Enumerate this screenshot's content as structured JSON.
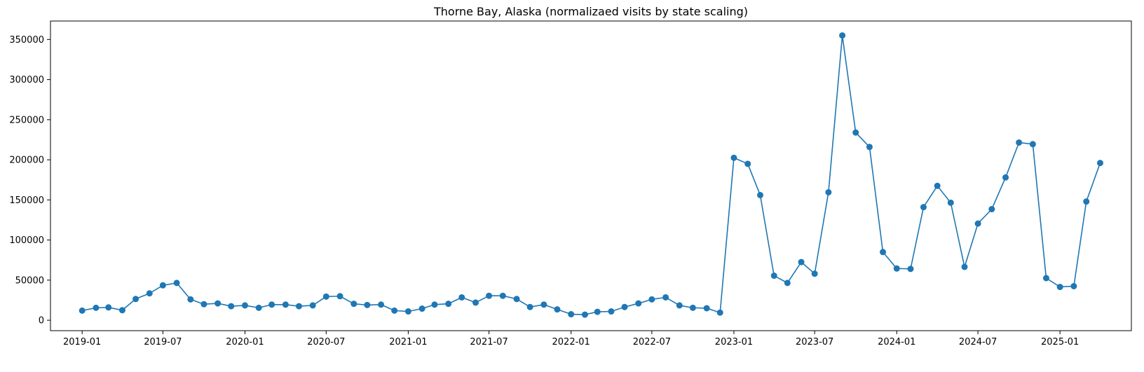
{
  "chart_data": {
    "type": "line",
    "title": "Thorne Bay, Alaska (normalizaed visits by state scaling)",
    "xlabel": "",
    "ylabel": "",
    "x_tick_labels": [
      "2019-01",
      "2019-07",
      "2020-01",
      "2020-07",
      "2021-01",
      "2021-07",
      "2022-01",
      "2022-07",
      "2023-01",
      "2023-07",
      "2024-01",
      "2024-07",
      "2025-01"
    ],
    "y_tick_labels": [
      "0",
      "50000",
      "100000",
      "150000",
      "200000",
      "250000",
      "300000",
      "350000"
    ],
    "y_ticks": [
      0,
      50000,
      100000,
      150000,
      200000,
      250000,
      300000,
      350000
    ],
    "ylim": [
      -13000,
      373000
    ],
    "xlim": [
      "2018-10-22",
      "2025-06-10"
    ],
    "grid": false,
    "marker": "circle",
    "color": "#1f77b4",
    "series": [
      {
        "x": [
          "2019-01",
          "2019-02",
          "2019-03",
          "2019-04",
          "2019-05",
          "2019-06",
          "2019-07",
          "2019-08",
          "2019-09",
          "2019-10",
          "2019-11",
          "2019-12",
          "2020-01",
          "2020-02",
          "2020-03",
          "2020-04",
          "2020-05",
          "2020-06",
          "2020-07",
          "2020-08",
          "2020-09",
          "2020-10",
          "2020-11",
          "2020-12",
          "2021-01",
          "2021-02",
          "2021-03",
          "2021-04",
          "2021-05",
          "2021-06",
          "2021-07",
          "2021-08",
          "2021-09",
          "2021-10",
          "2021-11",
          "2021-12",
          "2022-01",
          "2022-02",
          "2022-03",
          "2022-04",
          "2022-05",
          "2022-06",
          "2022-07",
          "2022-08",
          "2022-09",
          "2022-10",
          "2022-11",
          "2022-12",
          "2023-01",
          "2023-02",
          "2023-03",
          "2023-04",
          "2023-05",
          "2023-06",
          "2023-07",
          "2023-08",
          "2023-09",
          "2023-10",
          "2023-11",
          "2023-12",
          "2024-01",
          "2024-02",
          "2024-03",
          "2024-04",
          "2024-05",
          "2024-06",
          "2024-07",
          "2024-08",
          "2024-09",
          "2024-10",
          "2024-11",
          "2024-12",
          "2025-01",
          "2025-02",
          "2025-03",
          "2025-04"
        ],
        "y": [
          12000,
          15500,
          16000,
          12500,
          26500,
          33500,
          43500,
          46500,
          26000,
          20000,
          21000,
          17500,
          18500,
          15500,
          19500,
          19500,
          17500,
          18500,
          29500,
          30000,
          20500,
          19000,
          19500,
          12000,
          11000,
          14500,
          19500,
          20500,
          28500,
          22000,
          30500,
          30500,
          26500,
          16500,
          19500,
          13500,
          7500,
          7000,
          10500,
          11000,
          16500,
          21000,
          26000,
          28500,
          18500,
          15500,
          15000,
          9500,
          202500,
          195000,
          156000,
          55500,
          46500,
          72500,
          58000,
          159500,
          355000,
          234000,
          216000,
          85000,
          64500,
          64000,
          141000,
          167500,
          146500,
          66500,
          120500,
          138500,
          178000,
          221500,
          219500,
          52500,
          41500,
          42500,
          148000,
          196000
        ]
      }
    ]
  }
}
